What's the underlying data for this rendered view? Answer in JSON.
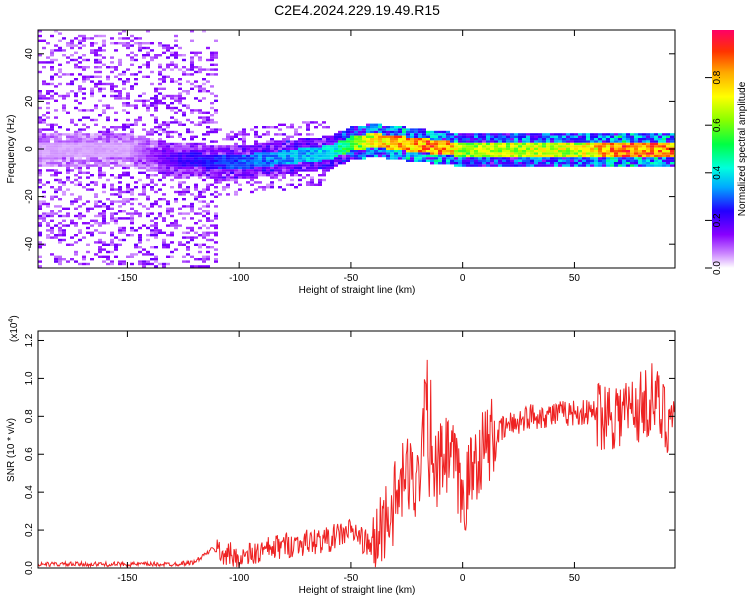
{
  "figure": {
    "title": "C2E4.2024.229.19.49.R15"
  },
  "chart_data": [
    {
      "type": "heatmap",
      "xlabel": "Height of straight line (km)",
      "ylabel": "Frequency (Hz)",
      "xlim": [
        -190,
        95
      ],
      "ylim": [
        -50,
        50
      ],
      "xticks": [
        -150,
        -100,
        -50,
        0,
        50
      ],
      "yticks": [
        -40,
        -20,
        0,
        20,
        40
      ],
      "colorbar": {
        "label": "Normalized spectral amplitude",
        "ticks": [
          0.0,
          0.2,
          0.4,
          0.6,
          0.8
        ],
        "range": [
          0,
          1
        ]
      },
      "ridge": {
        "description_points_x_km": [
          -190,
          -150,
          -130,
          -100,
          -80,
          -60,
          -50,
          -40,
          -30,
          -20,
          -10,
          0,
          20,
          50,
          70,
          95
        ],
        "center_freq_hz": [
          0,
          0,
          -4,
          -5,
          -3,
          -1,
          3,
          4,
          3,
          2,
          1,
          0,
          0,
          0,
          0,
          0
        ],
        "amplitude": [
          0.05,
          0.05,
          0.2,
          0.3,
          0.35,
          0.4,
          0.6,
          0.75,
          0.85,
          0.85,
          0.9,
          0.65,
          0.7,
          0.7,
          0.9,
          0.85
        ]
      }
    },
    {
      "type": "line",
      "xlabel": "Height of straight line (km)",
      "ylabel": "SNR (10 * v/v)",
      "yscale_label": "(x10",
      "yscale_exp": "4",
      "xlim": [
        -190,
        95
      ],
      "ylim": [
        0,
        1.25
      ],
      "xticks": [
        -150,
        -100,
        -50,
        0,
        50
      ],
      "yticks": [
        "0.0",
        "0.2",
        "0.4",
        "0.6",
        "0.8",
        "1.0",
        "1.2"
      ],
      "series": [
        {
          "color": "#ee2222",
          "x": [
            -190,
            -160,
            -130,
            -120,
            -112,
            -100,
            -80,
            -60,
            -50,
            -40,
            -35,
            -30,
            -25,
            -20,
            -16,
            -15,
            -10,
            -5,
            0,
            5,
            10,
            20,
            30,
            50,
            70,
            80,
            85,
            90,
            95
          ],
          "y": [
            0.02,
            0.02,
            0.02,
            0.03,
            0.1,
            0.05,
            0.12,
            0.15,
            0.2,
            0.1,
            0.25,
            0.35,
            0.5,
            0.45,
            1.0,
            0.4,
            0.55,
            0.6,
            0.35,
            0.55,
            0.65,
            0.75,
            0.8,
            0.82,
            0.82,
            0.85,
            0.9,
            0.8,
            0.8
          ]
        }
      ]
    }
  ]
}
